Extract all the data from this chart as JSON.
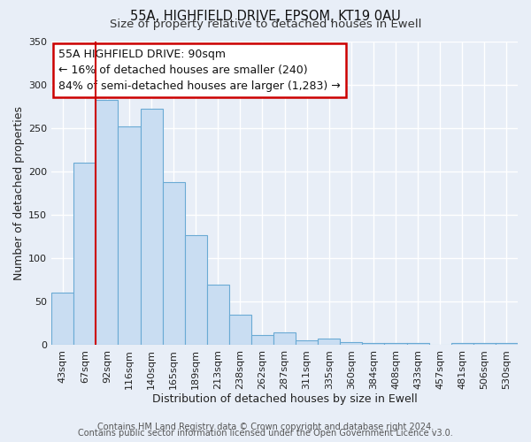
{
  "title": "55A, HIGHFIELD DRIVE, EPSOM, KT19 0AU",
  "subtitle": "Size of property relative to detached houses in Ewell",
  "xlabel": "Distribution of detached houses by size in Ewell",
  "ylabel": "Number of detached properties",
  "bar_labels": [
    "43sqm",
    "67sqm",
    "92sqm",
    "116sqm",
    "140sqm",
    "165sqm",
    "189sqm",
    "213sqm",
    "238sqm",
    "262sqm",
    "287sqm",
    "311sqm",
    "335sqm",
    "360sqm",
    "384sqm",
    "408sqm",
    "433sqm",
    "457sqm",
    "481sqm",
    "506sqm",
    "530sqm"
  ],
  "bar_heights": [
    60,
    210,
    282,
    252,
    272,
    188,
    127,
    70,
    35,
    12,
    15,
    5,
    7,
    3,
    2,
    2,
    2,
    0,
    2,
    2,
    2
  ],
  "bar_color": "#c9ddf2",
  "bar_edge_color": "#6aaad4",
  "bar_linewidth": 0.8,
  "vline_color": "#cc0000",
  "vline_x": 1.5,
  "ylim": [
    0,
    350
  ],
  "yticks": [
    0,
    50,
    100,
    150,
    200,
    250,
    300,
    350
  ],
  "annotation_text": "55A HIGHFIELD DRIVE: 90sqm\n← 16% of detached houses are smaller (240)\n84% of semi-detached houses are larger (1,283) →",
  "footer_line1": "Contains HM Land Registry data © Crown copyright and database right 2024.",
  "footer_line2": "Contains public sector information licensed under the Open Government Licence v3.0.",
  "fig_facecolor": "#e8eef7",
  "plot_facecolor": "#e8eef7",
  "grid_color": "#ffffff",
  "title_fontsize": 10.5,
  "subtitle_fontsize": 9.5,
  "axis_label_fontsize": 9,
  "tick_fontsize": 8,
  "annotation_fontsize": 9,
  "footer_fontsize": 7
}
